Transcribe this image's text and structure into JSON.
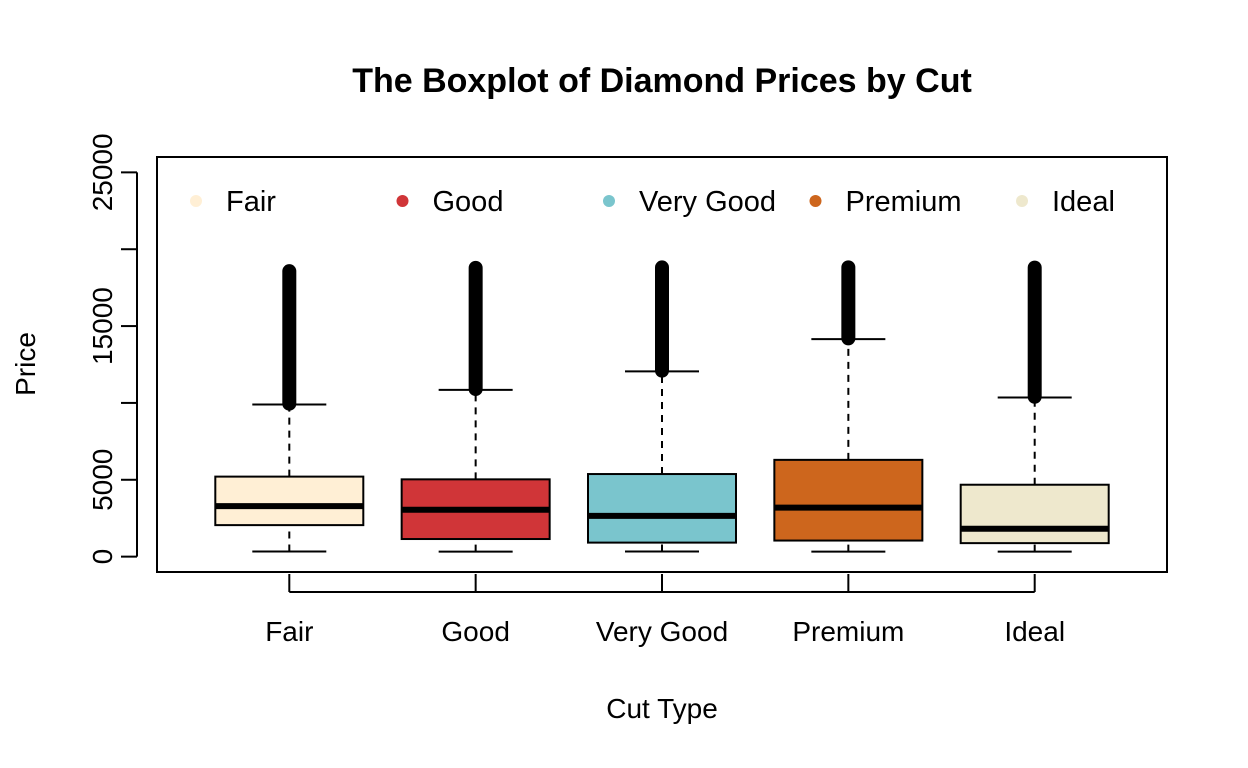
{
  "chart_data": {
    "type": "boxplot",
    "title": "The Boxplot of Diamond Prices by Cut",
    "xlabel": "Cut Type",
    "ylabel": "Price",
    "ylim": [
      -1000,
      26000
    ],
    "yticks": [
      0,
      5000,
      10000,
      15000,
      20000,
      25000
    ],
    "ytick_labels": [
      "0",
      "5000",
      "",
      "15000",
      "",
      "25000"
    ],
    "legend_position": "top",
    "grid": false,
    "categories": [
      "Fair",
      "Good",
      "Very Good",
      "Premium",
      "Ideal"
    ],
    "series": [
      {
        "name": "Fair",
        "color": "#FFEFD5",
        "whisker_low": 337,
        "q1": 2050,
        "median": 3282,
        "q3": 5206,
        "whisker_high": 9900,
        "outlier_low": 9950,
        "outlier_high": 18574
      },
      {
        "name": "Good",
        "color": "#D03538",
        "whisker_low": 327,
        "q1": 1145,
        "median": 3050,
        "q3": 5028,
        "whisker_high": 10850,
        "outlier_low": 10900,
        "outlier_high": 18788
      },
      {
        "name": "Very Good",
        "color": "#7AC5CD",
        "whisker_low": 336,
        "q1": 912,
        "median": 2648,
        "q3": 5373,
        "whisker_high": 12050,
        "outlier_low": 12100,
        "outlier_high": 18818
      },
      {
        "name": "Premium",
        "color": "#CD661D",
        "whisker_low": 326,
        "q1": 1046,
        "median": 3185,
        "q3": 6296,
        "whisker_high": 14150,
        "outlier_low": 14200,
        "outlier_high": 18823
      },
      {
        "name": "Ideal",
        "color": "#EEE8CD",
        "whisker_low": 326,
        "q1": 878,
        "median": 1810,
        "q3": 4678,
        "whisker_high": 10350,
        "outlier_low": 10400,
        "outlier_high": 18806
      }
    ]
  }
}
